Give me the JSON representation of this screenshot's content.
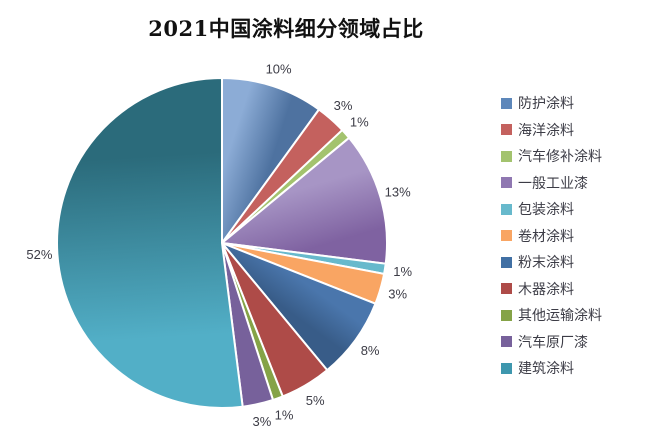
{
  "chart_data": {
    "type": "pie",
    "title": "2021中国涂料细分领域占比",
    "legend_position": "right",
    "label_format": "percent-outside",
    "data_label_color": "#3c3c46",
    "background_color": "#ffffff",
    "slices": [
      {
        "label": "防护涂料",
        "value": 10,
        "display": "10%",
        "color": "#5d87ba",
        "light": "#8cacd6",
        "dark": "#4e72a0"
      },
      {
        "label": "海洋涂料",
        "value": 3,
        "display": "3%",
        "color": "#c4615e",
        "light": "#cc6a63",
        "dark": "#b04a44"
      },
      {
        "label": "汽车修补涂料",
        "value": 1,
        "display": "1%",
        "color": "#a3c36e",
        "light": "#a6c46e",
        "dark": "#93b153"
      },
      {
        "label": "一般工业漆",
        "value": 13,
        "display": "13%",
        "color": "#8f77b1",
        "light": "#a795c5",
        "dark": "#7f62a1"
      },
      {
        "label": "包装涂料",
        "value": 1,
        "display": "1%",
        "color": "#67b9cc",
        "light": "#7bc4d6",
        "dark": "#55aec6"
      },
      {
        "label": "卷材涂料",
        "value": 3,
        "display": "3%",
        "color": "#f9a563",
        "light": "#fbaf70",
        "dark": "#f49245"
      },
      {
        "label": "粉末涂料",
        "value": 8,
        "display": "8%",
        "color": "#4170a4",
        "light": "#4a76ac",
        "dark": "#385c88"
      },
      {
        "label": "木器涂料",
        "value": 5,
        "display": "5%",
        "color": "#ae4b48",
        "light": "#b65854",
        "dark": "#a34440"
      },
      {
        "label": "其他运输涂料",
        "value": 1,
        "display": "1%",
        "color": "#85a347",
        "light": "#8ca94e",
        "dark": "#76923c"
      },
      {
        "label": "汽车原厂漆",
        "value": 3,
        "display": "3%",
        "color": "#77619b",
        "light": "#7a639f",
        "dark": "#634c85"
      },
      {
        "label": "建筑涂料",
        "value": 52,
        "display": "52%",
        "color": "#3e97ae",
        "light": "#52afc7",
        "dark": "#2b6b7b"
      }
    ]
  }
}
